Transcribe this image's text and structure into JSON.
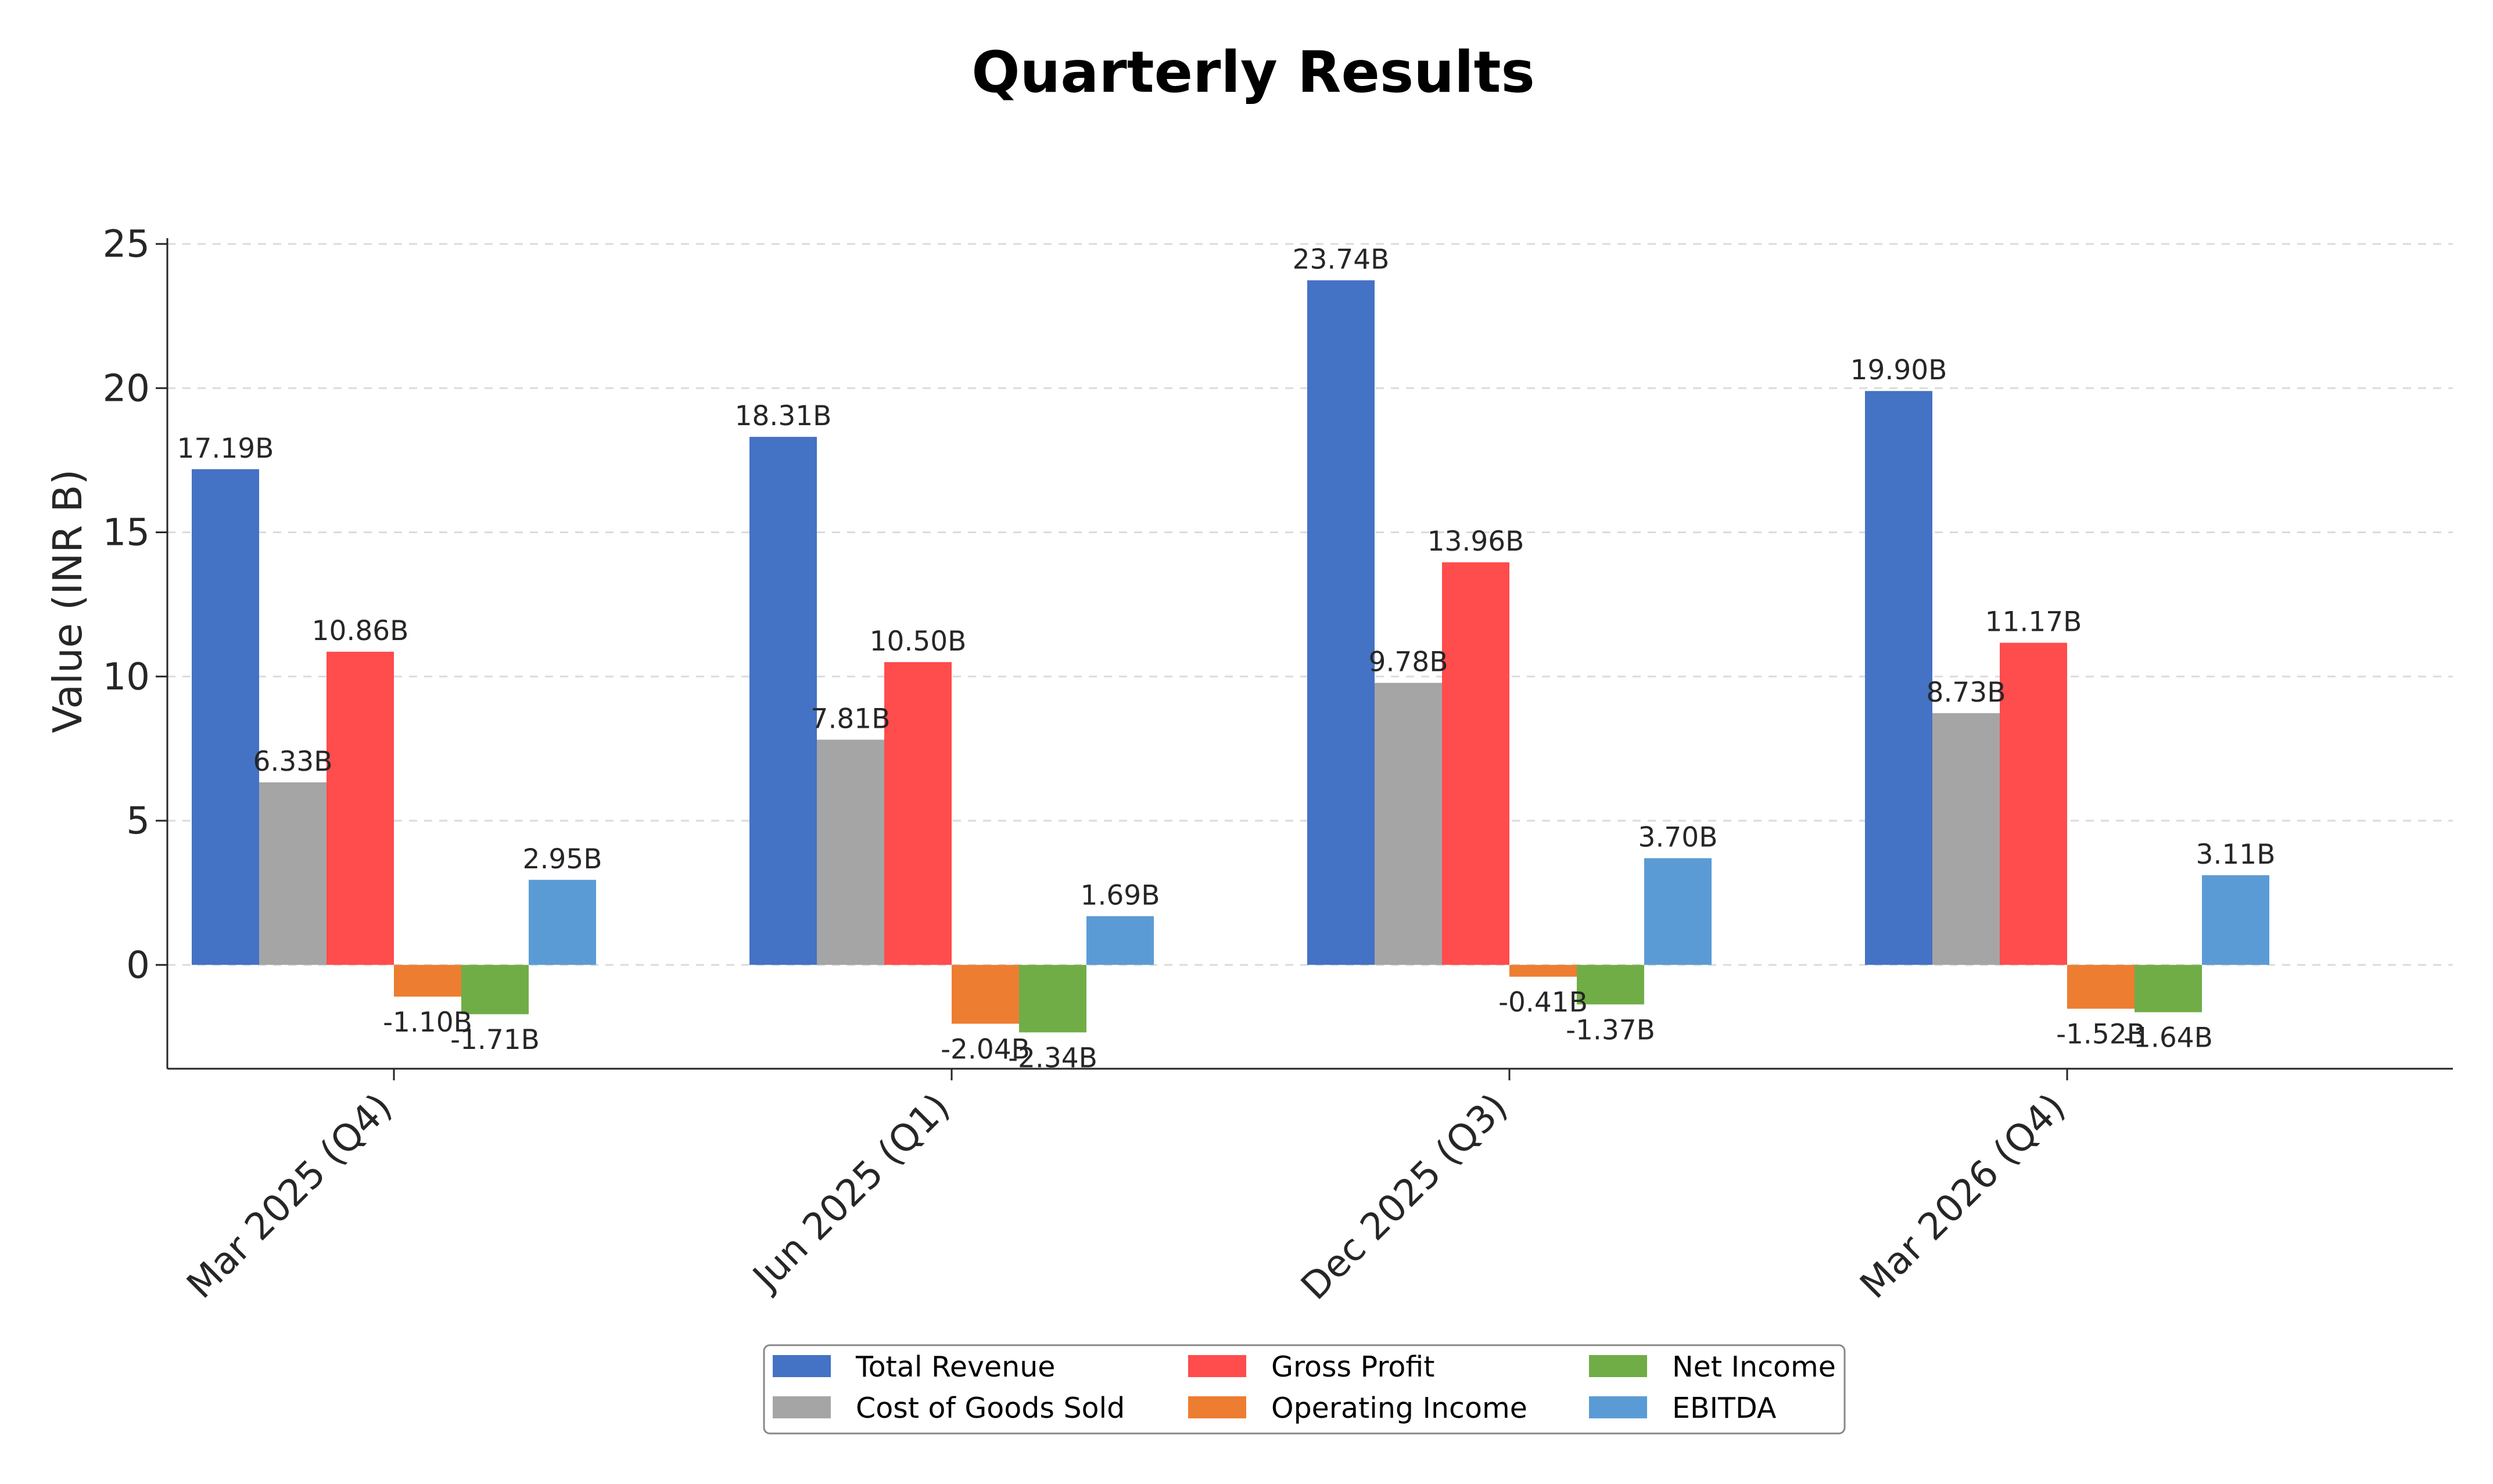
{
  "chart_data": {
    "type": "bar",
    "title": "Quarterly Results",
    "ylabel": "Value (INR B)",
    "xlabel": "",
    "ylim": [
      -3.6,
      25
    ],
    "yticks": [
      0,
      5,
      10,
      15,
      20,
      25
    ],
    "grid": true,
    "legend_position": "bottom-center",
    "value_suffix": "B",
    "categories": [
      "Mar 2025 (Q4)",
      "Jun 2025 (Q1)",
      "Dec 2025 (Q3)",
      "Mar 2026 (Q4)"
    ],
    "series": [
      {
        "name": "Total Revenue",
        "color": "#4472C4",
        "values": [
          17.19,
          18.31,
          23.74,
          19.9
        ]
      },
      {
        "name": "Cost of Goods Sold",
        "color": "#A5A5A5",
        "values": [
          6.33,
          7.81,
          9.78,
          8.73
        ]
      },
      {
        "name": "Gross Profit",
        "color": "#FF4C4C",
        "values": [
          10.86,
          10.5,
          13.96,
          11.17
        ]
      },
      {
        "name": "Operating Income",
        "color": "#ED7D31",
        "values": [
          -1.1,
          -2.04,
          -0.41,
          -1.52
        ]
      },
      {
        "name": "Net Income",
        "color": "#70AD47",
        "values": [
          -1.71,
          -2.34,
          -1.37,
          -1.64
        ]
      },
      {
        "name": "EBITDA",
        "color": "#5B9BD5",
        "values": [
          2.95,
          1.69,
          3.7,
          3.11
        ]
      }
    ]
  }
}
